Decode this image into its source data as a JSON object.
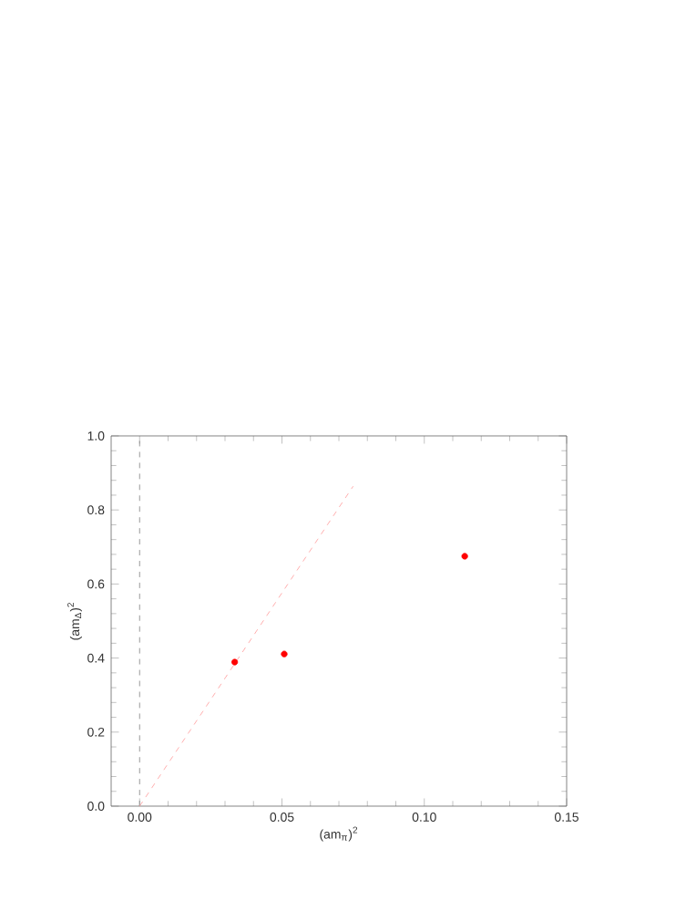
{
  "chart_data": {
    "type": "scatter",
    "xlabel": "(am$_{π}$)$^{2}$",
    "ylabel": "(am$_{Δ}$)$^{2}$",
    "xlim": [
      -0.01,
      0.15
    ],
    "ylim": [
      0,
      1
    ],
    "xticks": [
      {
        "value": 0,
        "label": "0.00"
      },
      0.05,
      {
        "value": 0.1,
        "label": "0.10"
      },
      0.15
    ],
    "yticks": [
      {
        "value": 0,
        "label": "0.0"
      },
      0.2,
      0.4,
      0.6,
      0.8,
      {
        "value": 1,
        "label": "1.0"
      }
    ],
    "series": [
      {
        "color": "#ff0000",
        "marker": "circle",
        "x": [
          0.0334,
          0.0508,
          0.1142
        ],
        "values": [
          0.389,
          0.411,
          0.675
        ]
      },
      {
        "type": "line",
        "color": "#ff9999",
        "line_style": "dashed",
        "marker": "none",
        "x": [
          0,
          0.075
        ],
        "values": [
          0,
          0.864
        ]
      }
    ],
    "ref_lines": [
      {
        "axis": "x",
        "value": 0,
        "color": "#808080",
        "line_style": "dashed"
      }
    ]
  }
}
